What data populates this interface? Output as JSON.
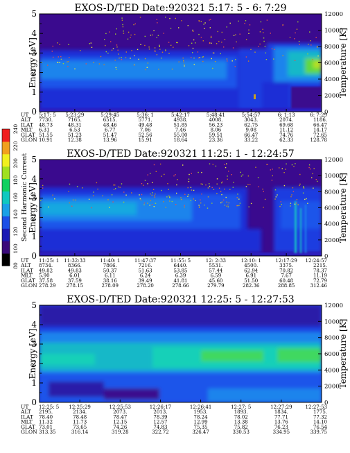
{
  "panels": [
    {
      "title": "EXOS-D/TED   Date:920321  5:17: 5 - 6: 7:29",
      "ylabel": "Energy [eV]",
      "y2label": "Temperature [K]",
      "eticks": [
        "0",
        "1",
        "2",
        "3",
        "4",
        "5"
      ],
      "tticks": [
        "0",
        "2000",
        "4000",
        "6000",
        "8000",
        "10000",
        "12000"
      ],
      "rowlabels": [
        "UT",
        "ALT",
        "ILAT",
        "MLT",
        "GLAT",
        "GLON"
      ],
      "columns": [
        [
          "5:17: 5",
          "7730.",
          "48.73",
          "6.31",
          "51.55",
          "10.91"
        ],
        [
          "5:23:29",
          "7165.",
          "48.31",
          "6.53",
          "51.23",
          "12.38"
        ],
        [
          "5:29:45",
          "6515.",
          "48.46",
          "6.77",
          "51.47",
          "13.96"
        ],
        [
          "5:36: 1",
          "5771.",
          "49.48",
          "7.06",
          "52.56",
          "15.91"
        ],
        [
          "5:42:17",
          "4938.",
          "51.85",
          "7.46",
          "55.00",
          "18.64"
        ],
        [
          "5:48:41",
          "4008.",
          "56.23",
          "8.06",
          "59.51",
          "23.36"
        ],
        [
          "5:54:57",
          "3043.",
          "62.75",
          "9.08",
          "66.47",
          "33.22"
        ],
        [
          "6: 1:13",
          "2074.",
          "69.68",
          "11.12",
          "74.76",
          "62.33"
        ],
        [
          "6: 7:29",
          "1186.",
          "66.47",
          "14.17",
          "72.65",
          "128.78"
        ]
      ]
    },
    {
      "title": "EXOS-D/TED   Date:920321  11:25: 1 - 12:24:57",
      "ylabel": "Energy [eV]",
      "y2label": "Temperature [K]",
      "eticks": [
        "0",
        "1",
        "2",
        "3",
        "4",
        "5"
      ],
      "tticks": [
        "0",
        "2000",
        "4000",
        "6000",
        "8000",
        "10000",
        "12000"
      ],
      "rowlabels": [
        "UT",
        "ALT",
        "ILAT",
        "MLT",
        "GLAT",
        "GLON"
      ],
      "columns": [
        [
          "11:25: 1",
          "8734.",
          "49.82",
          "5.90",
          "37.58",
          "278.29"
        ],
        [
          "11:32:33",
          "8366.",
          "49.83",
          "6.01",
          "37.59",
          "278.15"
        ],
        [
          "11:40: 1",
          "7866.",
          "50.37",
          "6.11",
          "38.16",
          "278.09"
        ],
        [
          "11:47:37",
          "7216.",
          "51.63",
          "6.24",
          "39.49",
          "278.20"
        ],
        [
          "11:55: 5",
          "6440.",
          "53.85",
          "6.39",
          "41.81",
          "278.66"
        ],
        [
          "12: 2:33",
          "5531.",
          "57.44",
          "6.59",
          "45.60",
          "279.79"
        ],
        [
          "12:10: 1",
          "4500.",
          "62.94",
          "6.91",
          "51.50",
          "282.36"
        ],
        [
          "12:17:29",
          "3375.",
          "70.82",
          "7.67",
          "60.48",
          "288.85"
        ],
        [
          "12:24:57",
          "2215.",
          "78.37",
          "11.19",
          "72.79",
          "312.46"
        ]
      ]
    },
    {
      "title": "EXOS-D/TED   Date:920321  12:25: 5 - 12:27:53",
      "ylabel": "Energy [eV]",
      "y2label": "Temperature [K]",
      "eticks": [
        "0",
        "1",
        "2",
        "3",
        "4",
        "5"
      ],
      "tticks": [
        "0",
        "2000",
        "4000",
        "6000",
        "8000",
        "10000",
        "12000"
      ],
      "rowlabels": [
        "UT",
        "ALT",
        "ILAT",
        "MLT",
        "GLAT",
        "GLON"
      ],
      "columns": [
        [
          "12:25: 5",
          "2195.",
          "78.40",
          "11.32",
          "73.01",
          "313.35"
        ],
        [
          "12:25:29",
          "2134.",
          "78.48",
          "11.73",
          "73.65",
          "316.14"
        ],
        [
          "12:25:53",
          "2073.",
          "78.47",
          "12.15",
          "74.26",
          "319.28"
        ],
        [
          "12:26:17",
          "2013.",
          "78.39",
          "12.57",
          "74.83",
          "322.72"
        ],
        [
          "12:26:41",
          "1953.",
          "78.24",
          "12.99",
          "75.35",
          "326.47"
        ],
        [
          "12:27: 5",
          "1893.",
          "78.02",
          "13.38",
          "75.82",
          "330.53"
        ],
        [
          "12:27:29",
          "1834.",
          "77.71",
          "13.76",
          "76.23",
          "334.95"
        ],
        [
          "12:27:53",
          "1775.",
          "77.32",
          "14.10",
          "76.54",
          "339.75"
        ]
      ]
    }
  ],
  "colorbar": {
    "label": "Second Harmonic Current",
    "ticks": [
      "80",
      "100",
      "120",
      "140",
      "160",
      "180",
      "200",
      "220",
      "240"
    ],
    "colors": [
      "#000000",
      "#3a0a7a",
      "#1a1ab4",
      "#1c4fe6",
      "#1aa0e6",
      "#10c8c0",
      "#10d060",
      "#a0e020",
      "#f0f020",
      "#f0a020",
      "#f02020"
    ]
  },
  "chart_data": [
    {
      "type": "heatmap",
      "title": "EXOS-D/TED   Date:920321  5:17: 5 - 6: 7:29",
      "ylabel": "Energy [eV]",
      "y2label": "Temperature [K]",
      "ylim": [
        0,
        5
      ],
      "y2lim": [
        0,
        12000
      ],
      "x": [
        "5:17: 5",
        "5:23:29",
        "5:29:45",
        "5:36: 1",
        "5:42:17",
        "5:48:41",
        "5:54:57",
        "6: 1:13",
        "6: 7:29"
      ],
      "value_range": [
        80,
        240
      ]
    },
    {
      "type": "heatmap",
      "title": "EXOS-D/TED   Date:920321  11:25: 1 - 12:24:57",
      "ylabel": "Energy [eV]",
      "y2label": "Temperature [K]",
      "ylim": [
        0,
        5
      ],
      "y2lim": [
        0,
        12000
      ],
      "x": [
        "11:25: 1",
        "11:32:33",
        "11:40: 1",
        "11:47:37",
        "11:55: 5",
        "12: 2:33",
        "12:10: 1",
        "12:17:29",
        "12:24:57"
      ],
      "value_range": [
        80,
        240
      ]
    },
    {
      "type": "heatmap",
      "title": "EXOS-D/TED   Date:920321  12:25: 5 - 12:27:53",
      "ylabel": "Energy [eV]",
      "y2label": "Temperature [K]",
      "ylim": [
        0,
        5
      ],
      "y2lim": [
        0,
        12000
      ],
      "x": [
        "12:25: 5",
        "12:25:29",
        "12:25:53",
        "12:26:17",
        "12:26:41",
        "12:27: 5",
        "12:27:29",
        "12:27:53"
      ],
      "value_range": [
        80,
        240
      ]
    }
  ]
}
